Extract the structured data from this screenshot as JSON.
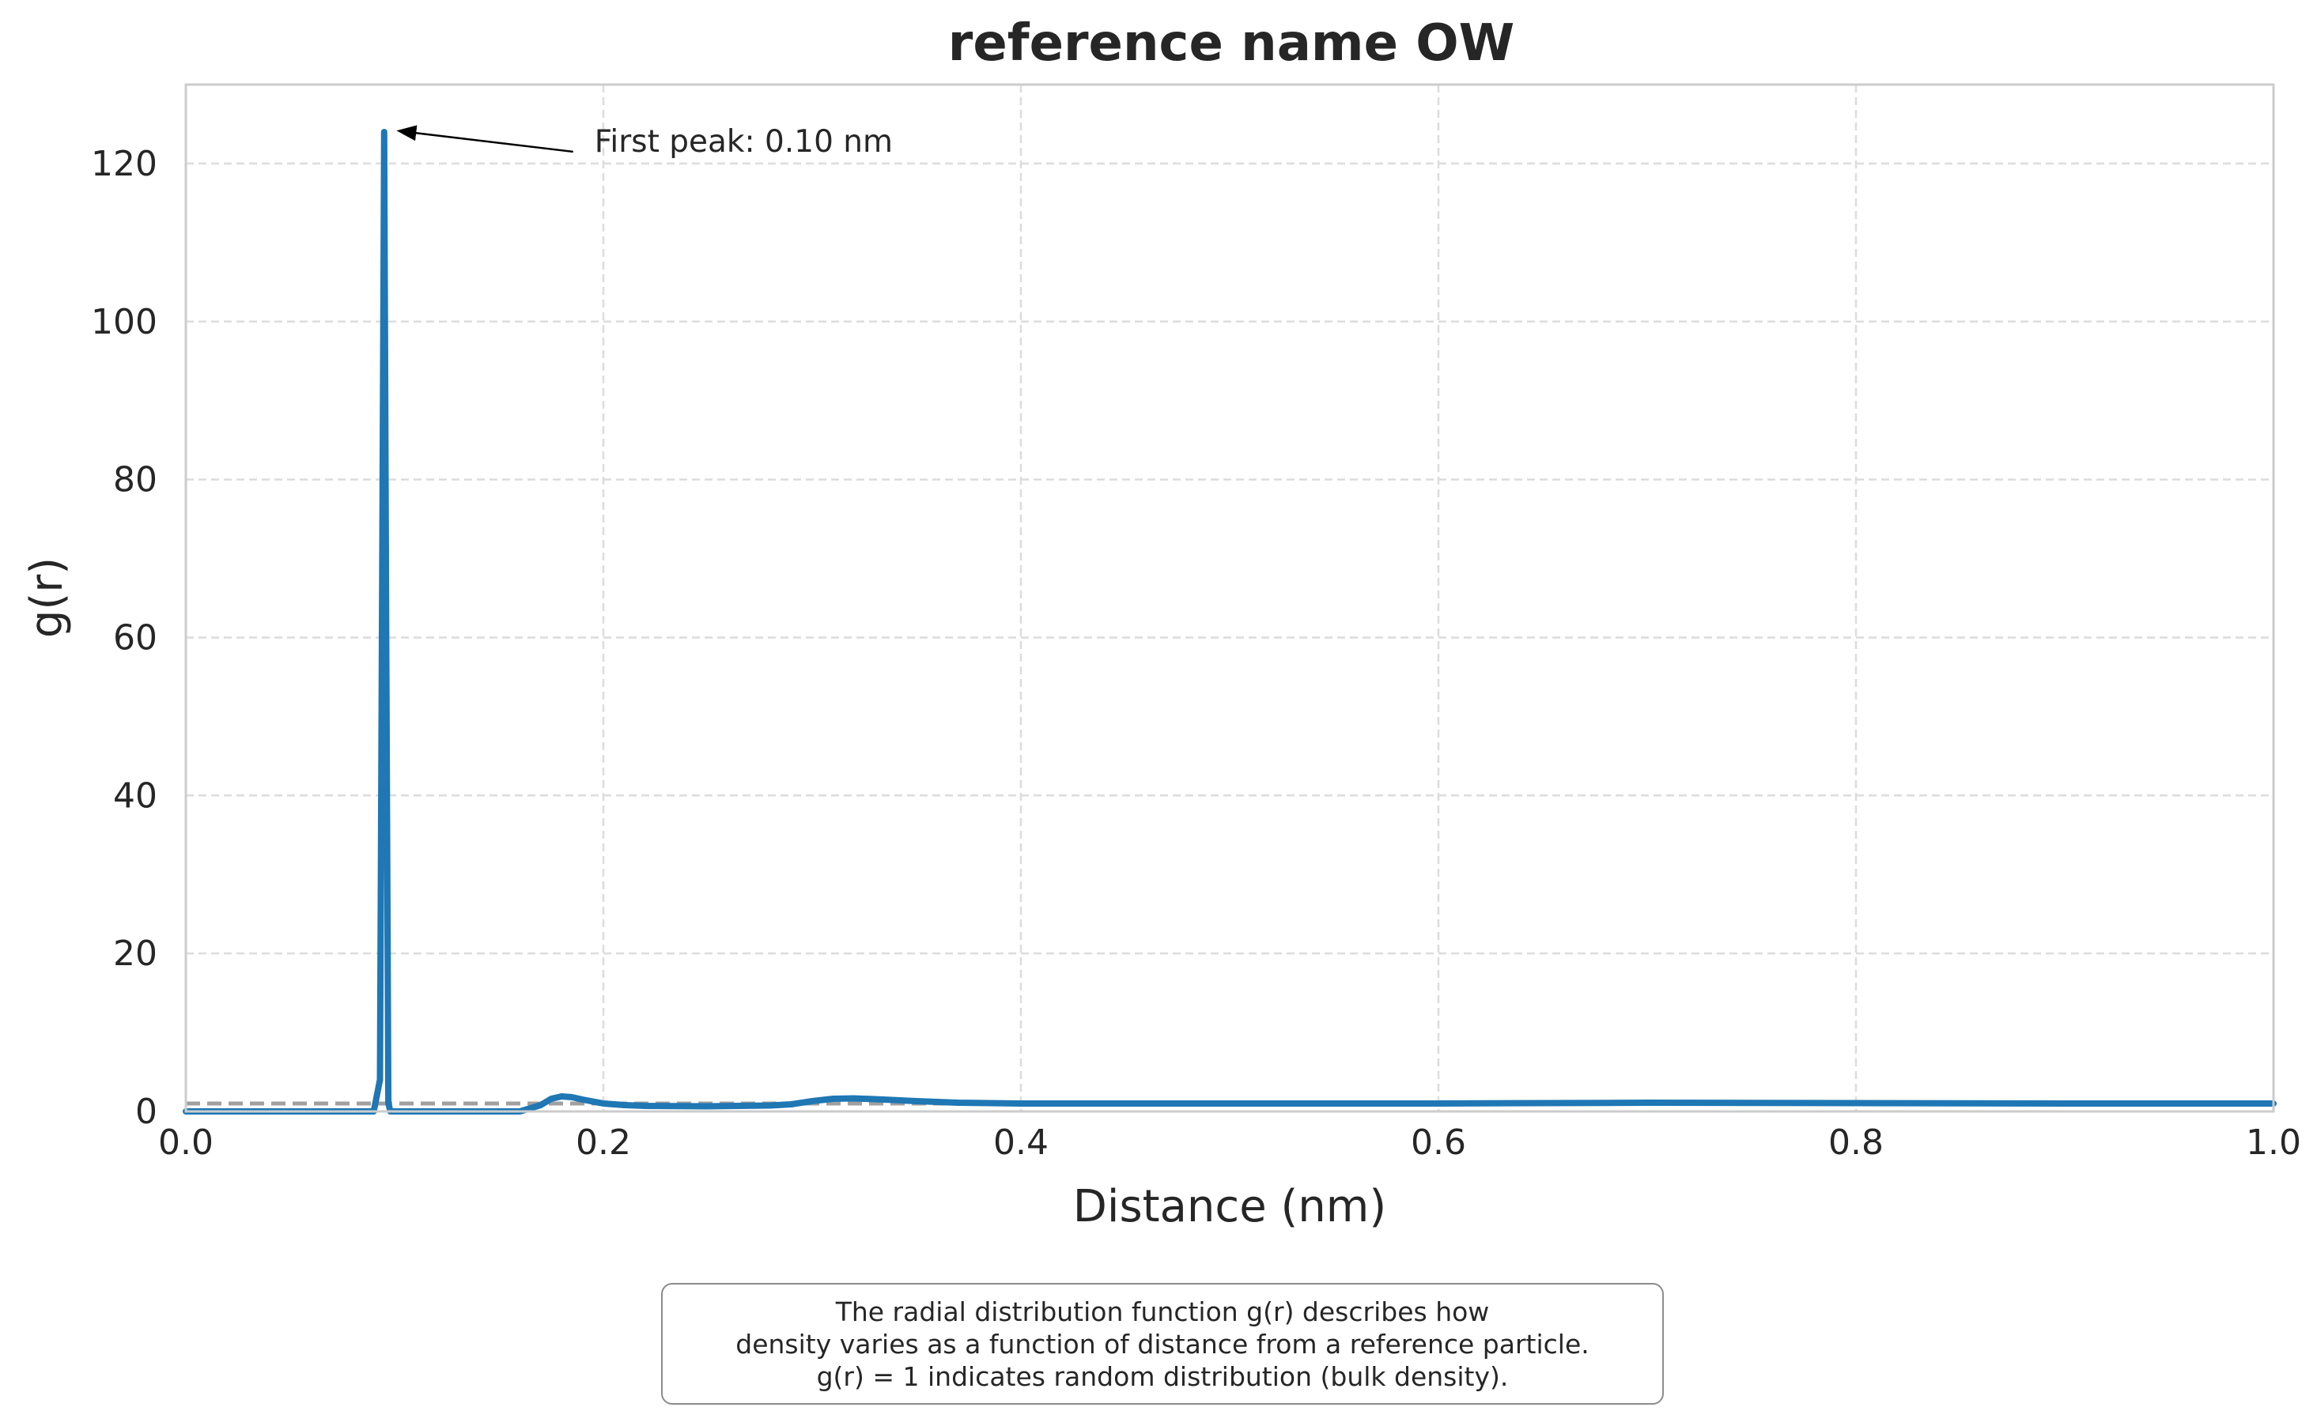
{
  "chart_data": {
    "type": "line",
    "title": "reference name OW",
    "xlabel": "Distance (nm)",
    "ylabel": "g(r)",
    "xlim": [
      0.0,
      1.0
    ],
    "ylim": [
      0,
      130
    ],
    "xticks": [
      0.0,
      0.2,
      0.4,
      0.6,
      0.8,
      1.0
    ],
    "xtick_labels": [
      "0.0",
      "0.2",
      "0.4",
      "0.6",
      "0.8",
      "1.0"
    ],
    "yticks": [
      0,
      20,
      40,
      60,
      80,
      100,
      120
    ],
    "ytick_labels": [
      "0",
      "20",
      "40",
      "60",
      "80",
      "100",
      "120"
    ],
    "grid": true,
    "line_color": "#1f77b4",
    "reference_line": {
      "y": 1,
      "style": "dashed",
      "color": "#a0a0a0"
    },
    "series": [
      {
        "x": [
          0.0,
          0.09,
          0.093,
          0.095,
          0.096,
          0.097,
          0.098,
          0.1,
          0.12,
          0.16,
          0.17,
          0.175,
          0.18,
          0.185,
          0.19,
          0.2,
          0.21,
          0.22,
          0.25,
          0.28,
          0.29,
          0.3,
          0.31,
          0.32,
          0.33,
          0.35,
          0.37,
          0.4,
          0.5,
          0.6,
          0.7,
          0.75,
          0.8,
          0.9,
          1.0
        ],
        "y": [
          0,
          0,
          4,
          124,
          60,
          1,
          0,
          0,
          0,
          0,
          0.8,
          1.6,
          1.9,
          1.8,
          1.5,
          1.0,
          0.8,
          0.7,
          0.65,
          0.75,
          0.9,
          1.3,
          1.6,
          1.65,
          1.55,
          1.3,
          1.1,
          1.0,
          1.0,
          1.0,
          1.1,
          1.08,
          1.05,
          1.0,
          1.0
        ]
      }
    ],
    "annotation": {
      "text": "First peak: 0.10 nm",
      "point": [
        0.095,
        124
      ],
      "text_at": [
        0.195,
        122
      ]
    }
  },
  "caption": {
    "lines": [
      "The radial distribution function g(r) describes how",
      "density varies as a function of distance from a reference particle.",
      "g(r) = 1 indicates random distribution (bulk density)."
    ]
  }
}
